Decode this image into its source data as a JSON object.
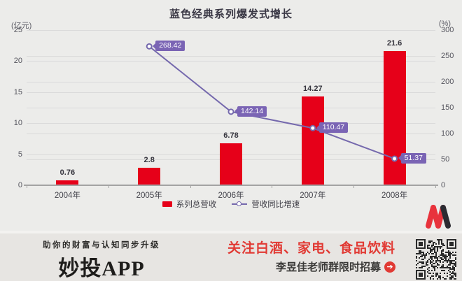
{
  "title": "蓝色经典系列爆发式增长",
  "left_axis": {
    "unit": "(亿元)",
    "ticks": [
      0,
      5,
      10,
      15,
      20,
      25
    ],
    "max": 25
  },
  "right_axis": {
    "unit": "(%)",
    "ticks": [
      0,
      50,
      100,
      150,
      200,
      250,
      300
    ],
    "max": 300
  },
  "chart_data": {
    "type": "bar+line",
    "title": "蓝色经典系列爆发式增长",
    "categories": [
      "2004年",
      "2005年",
      "2006年",
      "2007年",
      "2008年"
    ],
    "series": [
      {
        "name": "系列总营收",
        "type": "bar",
        "axis": "left",
        "color": "#e60019",
        "values": [
          0.76,
          2.8,
          6.78,
          14.27,
          21.6
        ]
      },
      {
        "name": "营收同比增速",
        "type": "line",
        "axis": "right",
        "color": "#7569ad",
        "x": [
          "2005年",
          "2006年",
          "2007年",
          "2008年"
        ],
        "values": [
          268.42,
          142.14,
          110.47,
          51.37
        ]
      }
    ],
    "left_ylim": [
      0,
      25
    ],
    "right_ylim": [
      0,
      300
    ],
    "grid": true,
    "legend_position": "bottom"
  },
  "legend": [
    {
      "label": "系列总营收",
      "color": "#e60019",
      "marker": "bar"
    },
    {
      "label": "营收同比增速",
      "color": "#7569ad",
      "marker": "line-circle"
    }
  ],
  "footer": {
    "tagline": "助你的财富与认知同步升级",
    "app_name": "妙投APP",
    "promo_headline": "关注白酒、家电、食品饮料",
    "promo_subline": "李昱佳老师群限时招募",
    "arrow_icon": "➔"
  },
  "colors": {
    "bar_red": "#e60019",
    "line_purple": "#7569ad",
    "label_purple": "#7a64b4",
    "promo_red": "#e13a34",
    "chart_bg": "#ececea",
    "banner_bg": "#e7e5e2"
  }
}
